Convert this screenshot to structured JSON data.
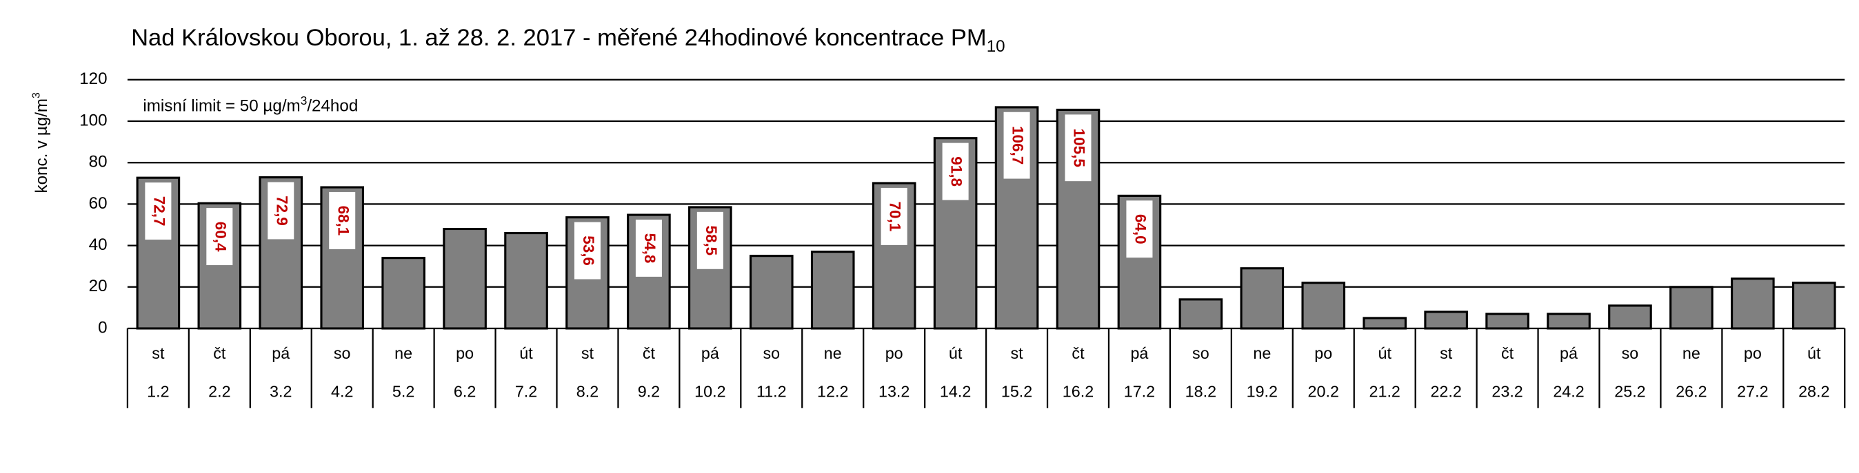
{
  "chart_data": {
    "type": "bar",
    "title": "Nad Královskou Oborou, 1. až 28. 2. 2017 - měřené 24hodinové koncentrace PM",
    "title_subscript": "10",
    "y_label": "konc. v µg/m",
    "y_label_superscript": "3",
    "annotation": [
      "imisní limit = 50 µg/m",
      "3",
      "/24hod"
    ],
    "weekdays": [
      "st",
      "čt",
      "pá",
      "so",
      "ne",
      "po",
      "út",
      "st",
      "čt",
      "pá",
      "so",
      "ne",
      "po",
      "út",
      "st",
      "čt",
      "pá",
      "so",
      "ne",
      "po",
      "út",
      "st",
      "čt",
      "pá",
      "so",
      "ne",
      "po",
      "út"
    ],
    "categories": [
      "1.2",
      "2.2",
      "3.2",
      "4.2",
      "5.2",
      "6.2",
      "7.2",
      "8.2",
      "9.2",
      "10.2",
      "11.2",
      "12.2",
      "13.2",
      "14.2",
      "15.2",
      "16.2",
      "17.2",
      "18.2",
      "19.2",
      "20.2",
      "21.2",
      "22.2",
      "23.2",
      "24.2",
      "25.2",
      "26.2",
      "27.2",
      "28.2"
    ],
    "values": [
      72.7,
      60.4,
      72.9,
      68.1,
      34,
      48,
      46,
      53.6,
      54.8,
      58.5,
      35,
      37,
      70.1,
      91.8,
      106.7,
      105.5,
      64.0,
      14,
      29,
      22,
      5,
      8,
      7,
      7,
      11,
      20,
      24,
      22
    ],
    "value_labels": [
      "72,7",
      "60,4",
      "72,9",
      "68,1",
      null,
      null,
      null,
      "53,6",
      "54,8",
      "58,5",
      null,
      null,
      "70,1",
      "91,8",
      "106,7",
      "105,5",
      "64,0",
      null,
      null,
      null,
      null,
      null,
      null,
      null,
      null,
      null,
      null,
      null
    ],
    "color": "#808080",
    "ylim": [
      0,
      120
    ],
    "yticks": [
      0,
      20,
      40,
      60,
      80,
      100,
      120
    ],
    "grid": true
  }
}
